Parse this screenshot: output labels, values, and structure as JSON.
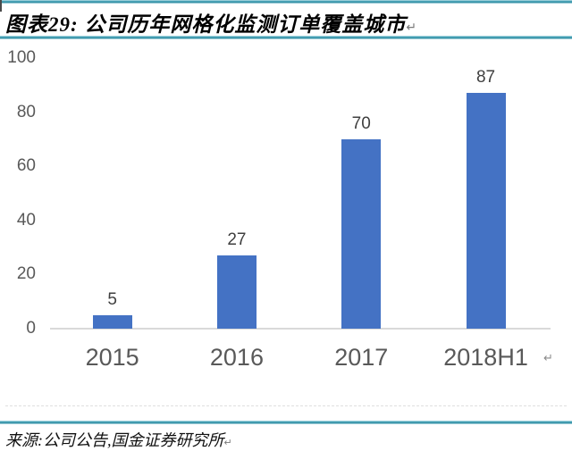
{
  "header": {
    "title": "图表29: 公司历年网格化监测订单覆盖城市",
    "pilcrow": "↵"
  },
  "footer": {
    "source": "来源:公司公告,国金证券研究所",
    "pilcrow": "↵"
  },
  "colors": {
    "bar": "#4472c4",
    "rule_teal": "#4bacc6",
    "axis_text": "#595959",
    "value_text": "#3f3f3f",
    "baseline": "#d9d9d9"
  },
  "chart_data": {
    "type": "bar",
    "categories": [
      "2015",
      "2016",
      "2017",
      "2018H1"
    ],
    "values": [
      5,
      27,
      70,
      87
    ],
    "title": "公司历年网格化监测订单覆盖城市",
    "xlabel": "",
    "ylabel": "",
    "ylim": [
      0,
      100
    ],
    "yticks": [
      0,
      20,
      40,
      60,
      80,
      100
    ],
    "grid": false,
    "legend": false,
    "bar_color": "#4472c4",
    "data_labels": true
  }
}
